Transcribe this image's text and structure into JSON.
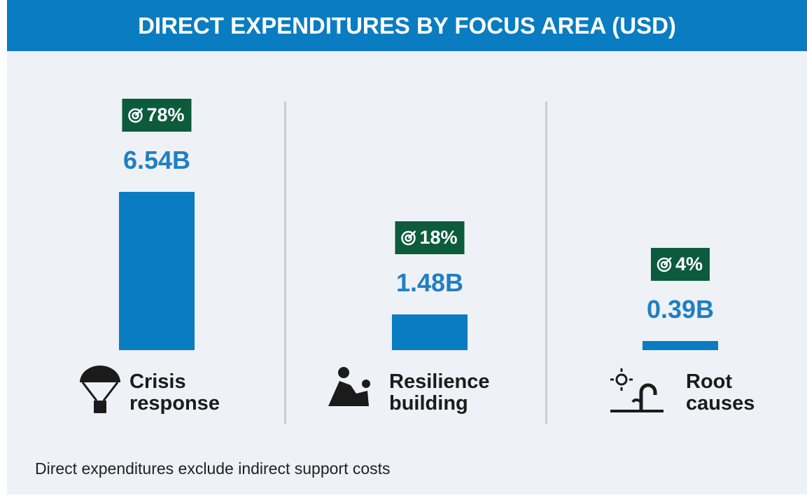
{
  "chart_data": {
    "type": "bar",
    "title": "DIRECT EXPENDITURES BY FOCUS AREA (USD)",
    "categories": [
      "Crisis response",
      "Resilience building",
      "Root causes"
    ],
    "values": [
      6.54,
      1.48,
      0.39
    ],
    "value_labels": [
      "6.54B",
      "1.48B",
      "0.39B"
    ],
    "shares": [
      78,
      18,
      4
    ],
    "share_labels": [
      "78%",
      "18%",
      "4%"
    ],
    "color": "#0a7cc1",
    "note": "Direct expenditures exclude indirect support costs"
  }
}
